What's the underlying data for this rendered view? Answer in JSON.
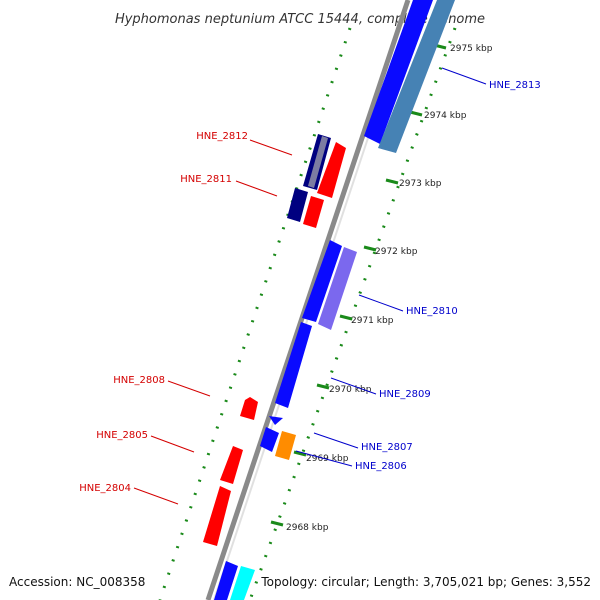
{
  "title": "Hyphomonas neptunium ATCC 15444, complete genome",
  "footer": {
    "accession": "Accession: NC_008358",
    "summary": "Topology: circular; Length: 3,705,021 bp; Genes: 3,552"
  },
  "kbp_labels": [
    "2975 kbp",
    "2974 kbp",
    "2973 kbp",
    "2972 kbp",
    "2971 kbp",
    "2970 kbp",
    "2969 kbp",
    "2968 kbp"
  ],
  "genes_reverse": [
    {
      "name": "HNE_2812",
      "color": "#d40000"
    },
    {
      "name": "HNE_2811",
      "color": "#d40000"
    },
    {
      "name": "HNE_2808",
      "color": "#d40000"
    },
    {
      "name": "HNE_2805",
      "color": "#d40000"
    },
    {
      "name": "HNE_2804",
      "color": "#d40000"
    }
  ],
  "genes_forward": [
    {
      "name": "HNE_2813",
      "color": "#0000cc"
    },
    {
      "name": "HNE_2810",
      "color": "#0000cc"
    },
    {
      "name": "HNE_2809",
      "color": "#0000cc"
    },
    {
      "name": "HNE_2807",
      "color": "#0000cc"
    },
    {
      "name": "HNE_2806",
      "color": "#0000cc"
    }
  ],
  "colors": {
    "backbone": "#8a8a8a",
    "tick": "#1a8a1a",
    "cds_forward": "#0a0aff",
    "cds_reverse": "#ff0000",
    "feature_steelblue": "#4682b4",
    "feature_navy": "#000080",
    "feature_slate": "#7b68ee",
    "feature_orange": "#ff8c00",
    "feature_cyan": "#00ffff"
  }
}
